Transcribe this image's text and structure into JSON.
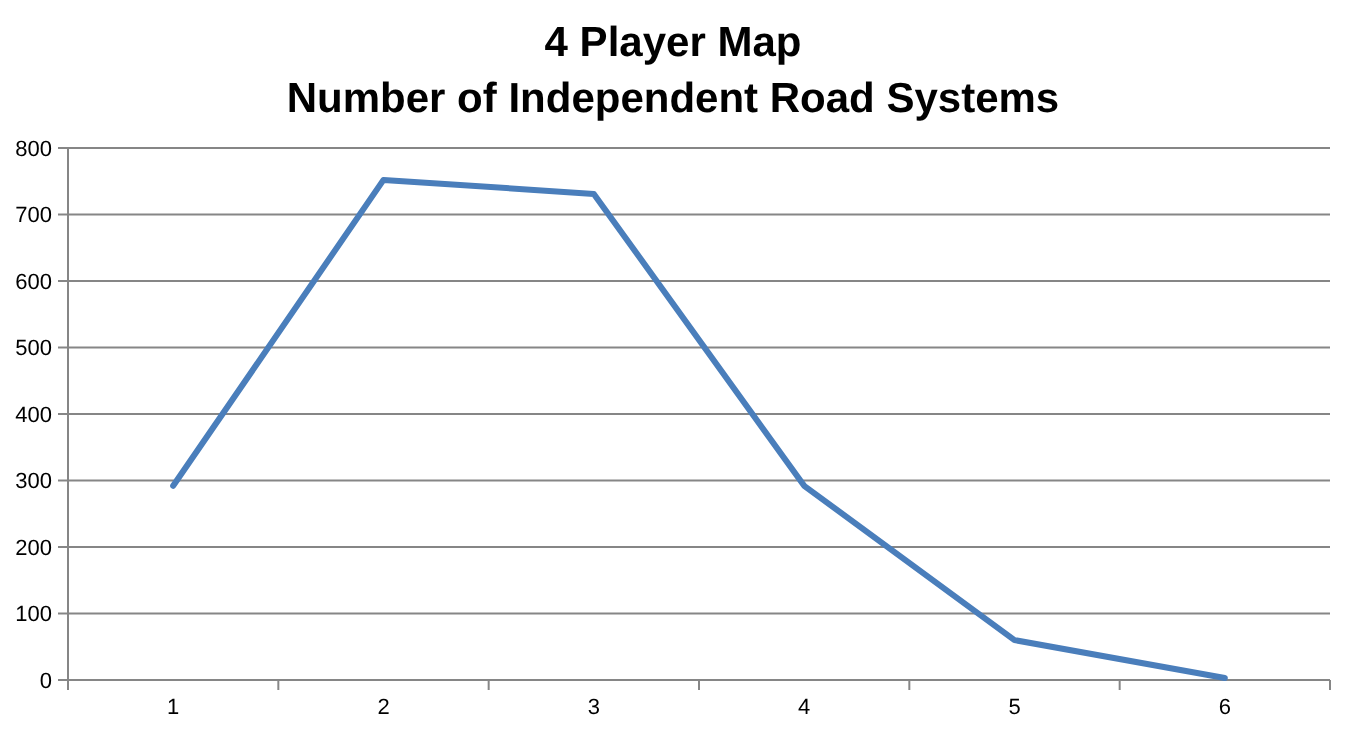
{
  "chart_data": {
    "type": "line",
    "title": "4 Player Map\nNumber of Independent Road Systems",
    "categories": [
      "1",
      "2",
      "3",
      "4",
      "5",
      "6"
    ],
    "series": [
      {
        "color": "#4a7ebb",
        "values": [
          292,
          752,
          731,
          292,
          60,
          3
        ]
      }
    ],
    "ylim": [
      0,
      800
    ],
    "yticks": [
      0,
      100,
      200,
      300,
      400,
      500,
      600,
      700,
      800
    ],
    "grid": "y",
    "marker": "none",
    "line_style": "solid"
  }
}
